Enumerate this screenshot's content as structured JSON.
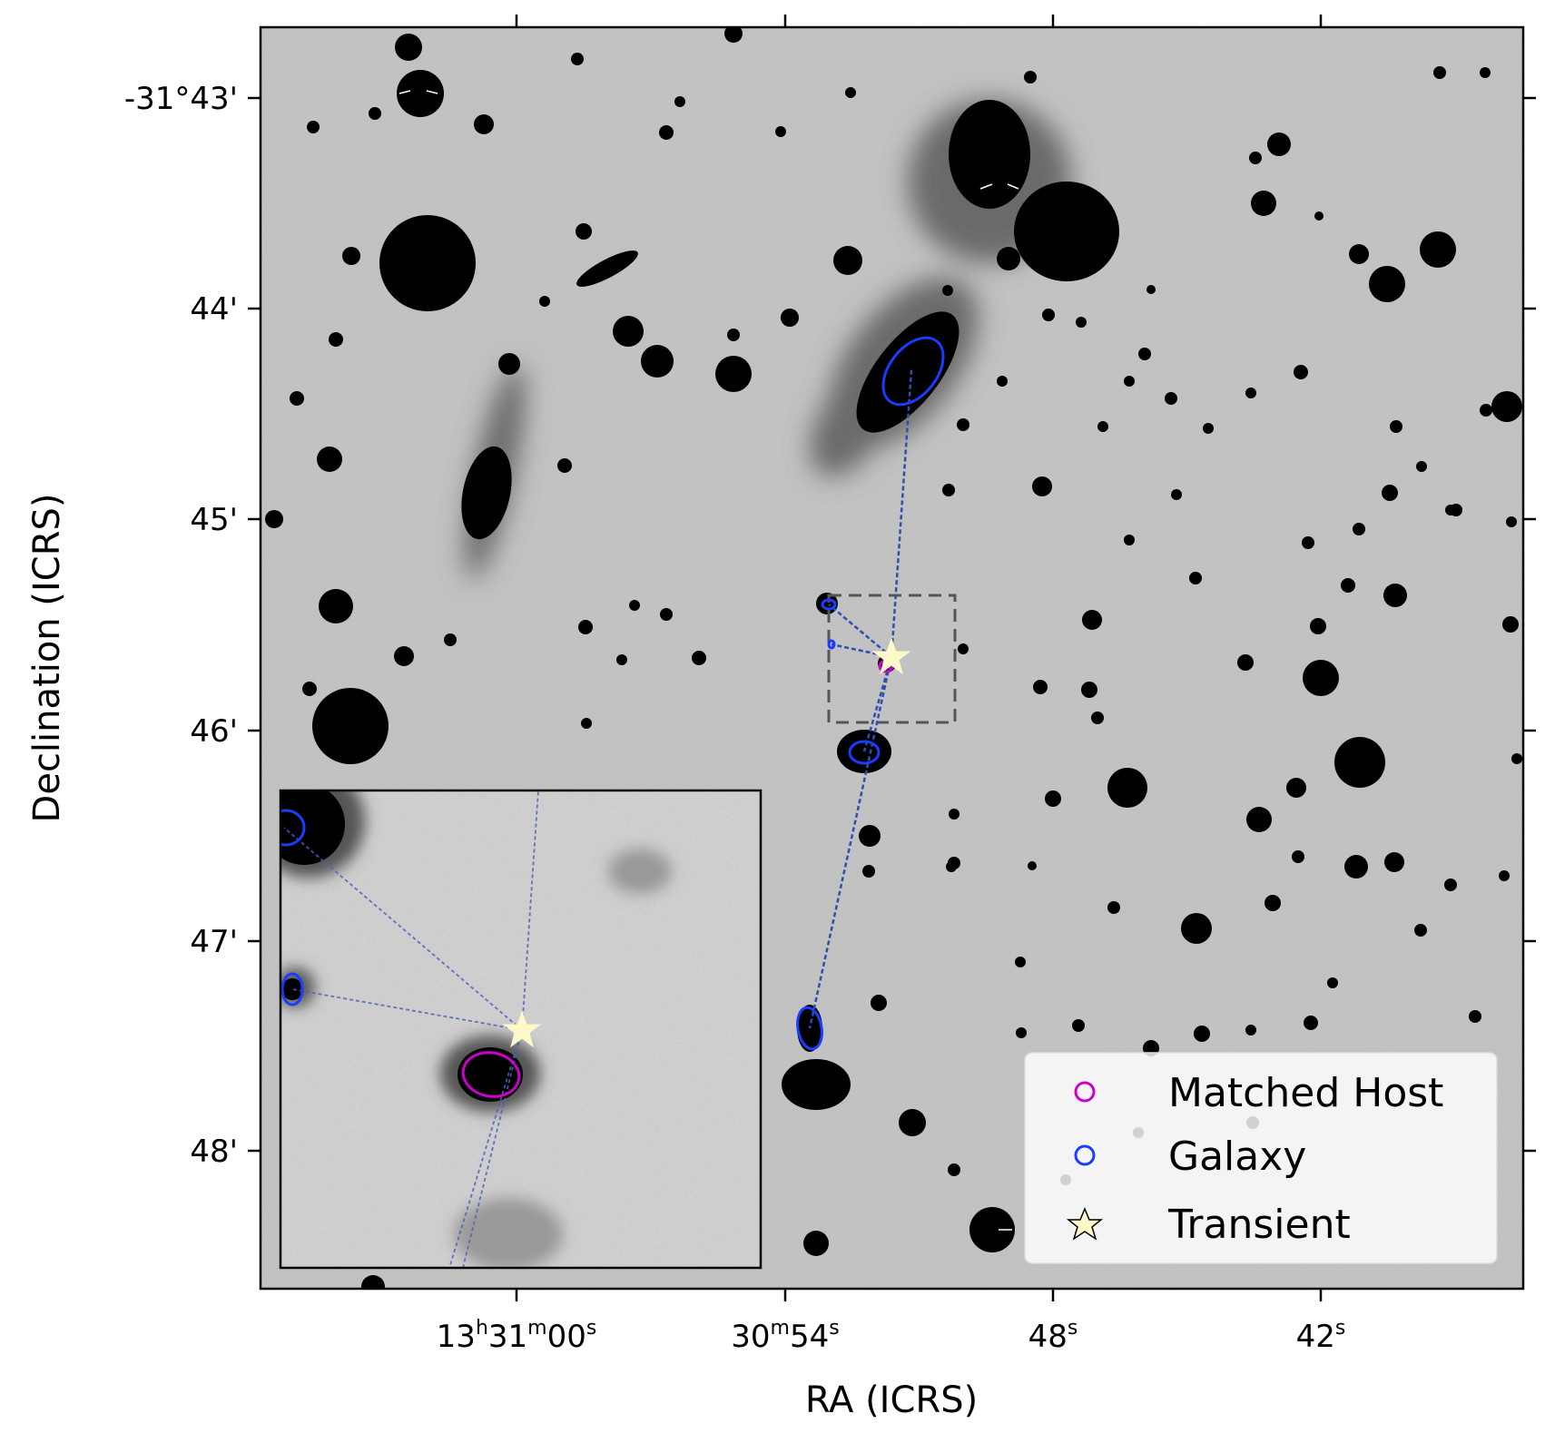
{
  "figure": {
    "x_axis_label": "RA (ICRS)",
    "y_axis_label": "Declination (ICRS)",
    "x_ticks": [
      {
        "main": "13",
        "sup1": "h",
        "p2": "31",
        "sup2": "m",
        "p3": "00",
        "sup3": "s"
      },
      {
        "main": "30",
        "sup1": "m",
        "p2": "54",
        "sup2": "s",
        "p3": "",
        "sup3": ""
      },
      {
        "main": "48",
        "sup1": "s",
        "p2": "",
        "sup2": "",
        "p3": "",
        "sup3": ""
      },
      {
        "main": "42",
        "sup1": "s",
        "p2": "",
        "sup2": "",
        "p3": "",
        "sup3": ""
      }
    ],
    "y_ticks": [
      "-31°43'",
      "44'",
      "45'",
      "46'",
      "47'",
      "48'"
    ]
  },
  "legend": {
    "items": [
      {
        "label": "Matched Host",
        "marker": "circle",
        "color": "#cc00cc"
      },
      {
        "label": "Galaxy",
        "marker": "circle",
        "color": "#1a3cff"
      },
      {
        "label": "Transient",
        "marker": "star",
        "color": "#fff8c8"
      }
    ]
  },
  "colors": {
    "galaxy": "#1a3cff",
    "matched_host": "#cc00cc",
    "transient": "#fff8c8",
    "association_line": "#2f4fb0",
    "zoom_box": "#555555"
  }
}
